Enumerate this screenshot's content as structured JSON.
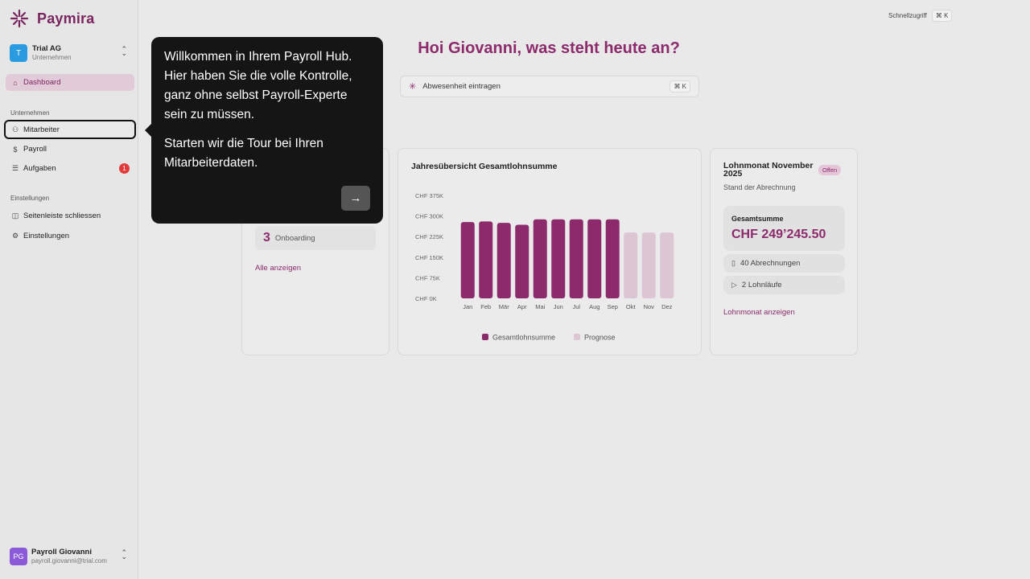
{
  "app": {
    "logo_text": "Paymira"
  },
  "company": {
    "initial": "T",
    "name": "Trial AG",
    "subtitle": "Unternehmen"
  },
  "sidebar": {
    "dashboard": "Dashboard",
    "section_company": "Unternehmen",
    "employees": "Mitarbeiter",
    "payroll": "Payroll",
    "tasks": "Aufgaben",
    "tasks_badge": "1",
    "section_settings": "Einstellungen",
    "collapse": "Seitenleiste schliessen",
    "settings": "Einstellungen"
  },
  "user": {
    "initials": "PG",
    "name": "Payroll Giovanni",
    "email": "payroll.giovanni@trial.com"
  },
  "topbar": {
    "quick_label": "Schnellzugriff",
    "quick_shortcut": "⌘ K"
  },
  "greeting": "Hoi Giovanni, was steht heute an?",
  "command": {
    "label": "Abwesenheit eintragen",
    "shortcut": "⌘ K"
  },
  "employees_card": {
    "onboarding_count": "3",
    "onboarding_label": "Onboarding",
    "show_all": "Alle anzeigen"
  },
  "chart_card": {
    "title": "Jahresübersicht Gesamtlohnsumme"
  },
  "chart_data": {
    "type": "bar",
    "title": "Jahresübersicht Gesamtlohnsumme",
    "categories": [
      "Jan",
      "Feb",
      "Mär",
      "Apr",
      "Mai",
      "Jun",
      "Jul",
      "Aug",
      "Sep",
      "Okt",
      "Nov",
      "Dez"
    ],
    "series": [
      {
        "name": "Gesamtlohnsumme",
        "color": "#8c2a6c",
        "values": [
          278000,
          280000,
          275000,
          268000,
          288000,
          288000,
          288000,
          288000,
          288000,
          null,
          null,
          null
        ]
      },
      {
        "name": "Prognose",
        "color": "#dcc6d3",
        "values": [
          null,
          null,
          null,
          null,
          null,
          null,
          null,
          null,
          null,
          240000,
          240000,
          240000
        ]
      }
    ],
    "yticks": [
      "CHF 0K",
      "CHF 75K",
      "CHF 150K",
      "CHF 225K",
      "CHF 300K",
      "CHF 375K"
    ],
    "ylim": [
      0,
      375000
    ],
    "legend": "bottom"
  },
  "month_card": {
    "title": "Lohnmonat November 2025",
    "status": "Offen",
    "subtitle": "Stand der Abrechnung",
    "total_label": "Gesamtsumme",
    "total_value": "CHF 249’245.50",
    "payslips": "40 Abrechnungen",
    "runs": "2 Lohnläufe",
    "link": "Lohnmonat anzeigen"
  },
  "tour": {
    "paragraph1": "Willkommen in Ihrem Payroll Hub. Hier haben Sie die volle Kontrolle, ganz ohne selbst Payroll-Experte sein zu müssen.",
    "paragraph2": "Starten wir die Tour bei Ihren Mitarbeiterdaten.",
    "next_icon": "arrow-right-icon"
  }
}
